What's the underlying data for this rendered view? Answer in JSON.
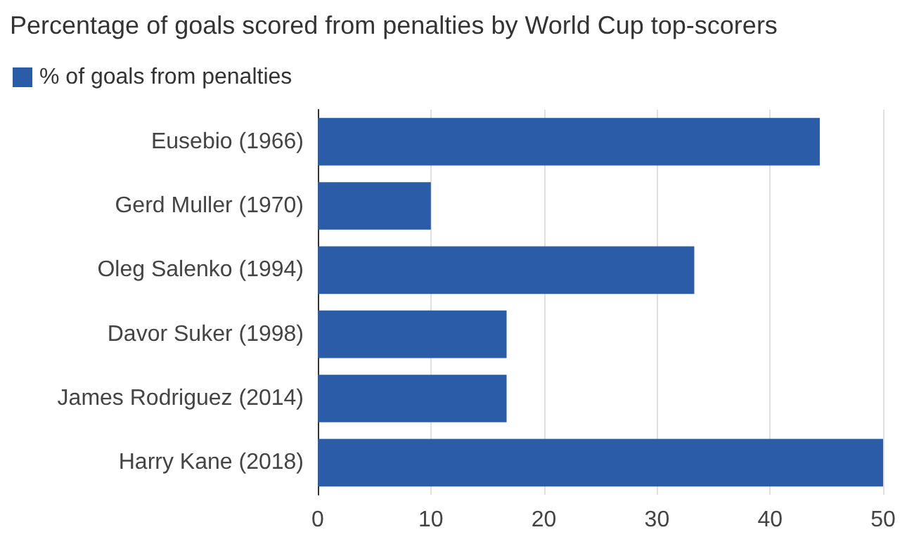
{
  "chart_data": {
    "type": "bar",
    "orientation": "horizontal",
    "title": "Percentage of goals scored from penalties by World Cup top-scorers",
    "categories": [
      "Eusebio (1966)",
      "Gerd Muller (1970)",
      "Oleg Salenko (1994)",
      "Davor Suker (1998)",
      "James Rodriguez (2014)",
      "Harry Kane (2018)"
    ],
    "series": [
      {
        "name": "% of goals from penalties",
        "color": "#2a5ca8",
        "values": [
          44.4,
          10,
          33.3,
          16.7,
          16.7,
          50
        ]
      }
    ],
    "xlim": [
      0,
      50
    ],
    "xticks": [
      0,
      10,
      20,
      30,
      40,
      50
    ],
    "grid": "x",
    "legend": "top left"
  }
}
